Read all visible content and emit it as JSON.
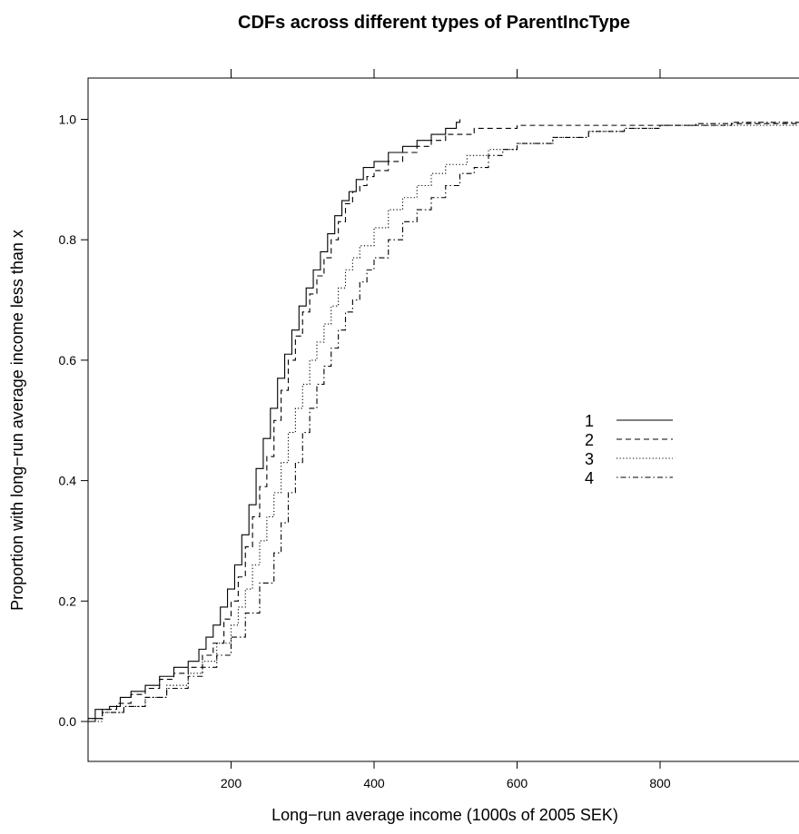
{
  "chart_data": {
    "type": "line",
    "step": true,
    "title": "CDFs across different types of ParentIncType",
    "xlabel": "Long−run average income (1000s of 2005 SEK)",
    "ylabel": "Proportion with long−run average income less than x",
    "xlim": [
      0,
      1000
    ],
    "ylim": [
      -0.07,
      1.07
    ],
    "x_ticks": [
      200,
      400,
      600,
      800
    ],
    "x_tick_labels": [
      "200",
      "400",
      "600",
      "800"
    ],
    "y_ticks": [
      0.0,
      0.2,
      0.4,
      0.6,
      0.8,
      1.0
    ],
    "y_tick_labels": [
      "0.0",
      "0.2",
      "0.4",
      "0.6",
      "0.8",
      "1.0"
    ],
    "top_axis_ticks": [
      200,
      400,
      600,
      800
    ],
    "grid": false,
    "legend": {
      "position": "right-middle",
      "inside": true
    },
    "series": [
      {
        "name": "1",
        "linestyle": "solid",
        "points": [
          [
            0,
            0.0
          ],
          [
            10,
            0.02
          ],
          [
            30,
            0.025
          ],
          [
            45,
            0.04
          ],
          [
            60,
            0.05
          ],
          [
            80,
            0.06
          ],
          [
            100,
            0.075
          ],
          [
            120,
            0.09
          ],
          [
            140,
            0.1
          ],
          [
            155,
            0.12
          ],
          [
            165,
            0.14
          ],
          [
            175,
            0.16
          ],
          [
            185,
            0.19
          ],
          [
            195,
            0.22
          ],
          [
            205,
            0.26
          ],
          [
            215,
            0.31
          ],
          [
            225,
            0.36
          ],
          [
            235,
            0.42
          ],
          [
            245,
            0.47
          ],
          [
            255,
            0.52
          ],
          [
            265,
            0.57
          ],
          [
            275,
            0.61
          ],
          [
            285,
            0.65
          ],
          [
            295,
            0.69
          ],
          [
            305,
            0.72
          ],
          [
            315,
            0.75
          ],
          [
            325,
            0.78
          ],
          [
            335,
            0.81
          ],
          [
            345,
            0.84
          ],
          [
            355,
            0.865
          ],
          [
            365,
            0.88
          ],
          [
            375,
            0.9
          ],
          [
            385,
            0.92
          ],
          [
            400,
            0.93
          ],
          [
            420,
            0.945
          ],
          [
            440,
            0.955
          ],
          [
            460,
            0.965
          ],
          [
            480,
            0.975
          ],
          [
            500,
            0.985
          ],
          [
            515,
            0.995
          ],
          [
            520,
            1.0
          ]
        ]
      },
      {
        "name": "2",
        "linestyle": "dashed",
        "points": [
          [
            0,
            0.005
          ],
          [
            20,
            0.02
          ],
          [
            40,
            0.03
          ],
          [
            60,
            0.045
          ],
          [
            80,
            0.055
          ],
          [
            100,
            0.07
          ],
          [
            120,
            0.08
          ],
          [
            140,
            0.09
          ],
          [
            160,
            0.11
          ],
          [
            175,
            0.13
          ],
          [
            190,
            0.17
          ],
          [
            200,
            0.2
          ],
          [
            210,
            0.24
          ],
          [
            220,
            0.29
          ],
          [
            230,
            0.34
          ],
          [
            240,
            0.39
          ],
          [
            250,
            0.44
          ],
          [
            260,
            0.5
          ],
          [
            270,
            0.55
          ],
          [
            280,
            0.6
          ],
          [
            290,
            0.64
          ],
          [
            300,
            0.68
          ],
          [
            310,
            0.71
          ],
          [
            320,
            0.74
          ],
          [
            330,
            0.77
          ],
          [
            340,
            0.8
          ],
          [
            350,
            0.83
          ],
          [
            360,
            0.86
          ],
          [
            370,
            0.88
          ],
          [
            380,
            0.89
          ],
          [
            390,
            0.905
          ],
          [
            400,
            0.915
          ],
          [
            420,
            0.93
          ],
          [
            440,
            0.945
          ],
          [
            460,
            0.955
          ],
          [
            480,
            0.965
          ],
          [
            500,
            0.975
          ],
          [
            540,
            0.985
          ],
          [
            600,
            0.99
          ],
          [
            700,
            0.99
          ],
          [
            800,
            0.99
          ],
          [
            900,
            0.993
          ],
          [
            1000,
            0.997
          ]
        ]
      },
      {
        "name": "3",
        "linestyle": "dotted",
        "points": [
          [
            0,
            0.0
          ],
          [
            20,
            0.015
          ],
          [
            50,
            0.025
          ],
          [
            80,
            0.04
          ],
          [
            110,
            0.06
          ],
          [
            140,
            0.08
          ],
          [
            160,
            0.1
          ],
          [
            180,
            0.13
          ],
          [
            200,
            0.16
          ],
          [
            210,
            0.19
          ],
          [
            220,
            0.22
          ],
          [
            230,
            0.26
          ],
          [
            240,
            0.3
          ],
          [
            250,
            0.34
          ],
          [
            260,
            0.38
          ],
          [
            270,
            0.43
          ],
          [
            280,
            0.48
          ],
          [
            290,
            0.52
          ],
          [
            300,
            0.56
          ],
          [
            310,
            0.6
          ],
          [
            320,
            0.63
          ],
          [
            330,
            0.66
          ],
          [
            340,
            0.69
          ],
          [
            350,
            0.72
          ],
          [
            360,
            0.75
          ],
          [
            370,
            0.77
          ],
          [
            380,
            0.79
          ],
          [
            400,
            0.82
          ],
          [
            420,
            0.85
          ],
          [
            440,
            0.87
          ],
          [
            460,
            0.89
          ],
          [
            480,
            0.91
          ],
          [
            500,
            0.925
          ],
          [
            530,
            0.94
          ],
          [
            560,
            0.95
          ],
          [
            600,
            0.96
          ],
          [
            650,
            0.97
          ],
          [
            700,
            0.98
          ],
          [
            750,
            0.985
          ],
          [
            800,
            0.99
          ],
          [
            900,
            0.99
          ],
          [
            1000,
            0.988
          ]
        ]
      },
      {
        "name": "4",
        "linestyle": "dotdash",
        "points": [
          [
            0,
            0.005
          ],
          [
            20,
            0.015
          ],
          [
            50,
            0.025
          ],
          [
            80,
            0.04
          ],
          [
            110,
            0.055
          ],
          [
            140,
            0.075
          ],
          [
            160,
            0.09
          ],
          [
            180,
            0.11
          ],
          [
            200,
            0.14
          ],
          [
            220,
            0.18
          ],
          [
            240,
            0.23
          ],
          [
            260,
            0.28
          ],
          [
            270,
            0.33
          ],
          [
            280,
            0.38
          ],
          [
            290,
            0.43
          ],
          [
            300,
            0.48
          ],
          [
            310,
            0.52
          ],
          [
            320,
            0.56
          ],
          [
            330,
            0.59
          ],
          [
            340,
            0.62
          ],
          [
            350,
            0.65
          ],
          [
            360,
            0.68
          ],
          [
            370,
            0.7
          ],
          [
            380,
            0.73
          ],
          [
            390,
            0.75
          ],
          [
            400,
            0.77
          ],
          [
            420,
            0.8
          ],
          [
            440,
            0.83
          ],
          [
            460,
            0.85
          ],
          [
            480,
            0.87
          ],
          [
            500,
            0.89
          ],
          [
            520,
            0.91
          ],
          [
            540,
            0.92
          ],
          [
            560,
            0.94
          ],
          [
            580,
            0.95
          ],
          [
            600,
            0.96
          ],
          [
            650,
            0.97
          ],
          [
            700,
            0.98
          ],
          [
            750,
            0.985
          ],
          [
            800,
            0.99
          ],
          [
            850,
            0.993
          ],
          [
            900,
            0.995
          ],
          [
            1000,
            0.997
          ]
        ]
      }
    ]
  }
}
